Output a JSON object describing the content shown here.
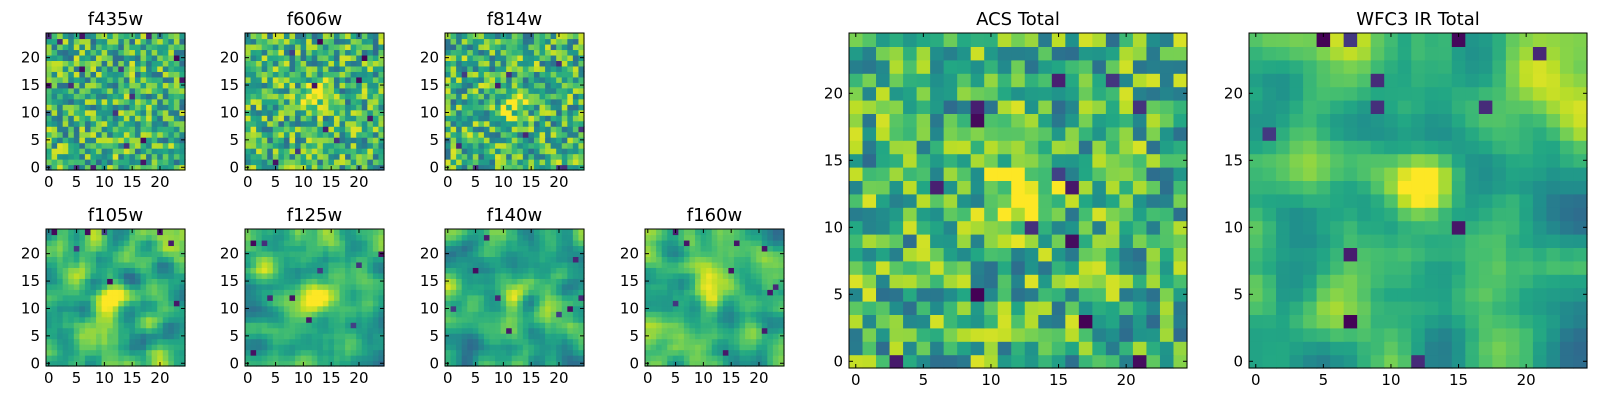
{
  "chart_data": [
    {
      "type": "heatmap",
      "title": "f435w",
      "size": 25,
      "xticks": [
        "0",
        "5",
        "10",
        "15",
        "20"
      ],
      "yticks": [
        "0",
        "5",
        "10",
        "15",
        "20"
      ],
      "style": "noise",
      "seed": 11,
      "hot_spot": null,
      "dark_pixels": 18,
      "colormap": "viridis"
    },
    {
      "type": "heatmap",
      "title": "f606w",
      "size": 25,
      "xticks": [
        "0",
        "5",
        "10",
        "15",
        "20"
      ],
      "yticks": [
        "0",
        "5",
        "10",
        "15",
        "20"
      ],
      "style": "noise",
      "seed": 23,
      "hot_spot": [
        12,
        13
      ],
      "dark_pixels": 10,
      "colormap": "viridis"
    },
    {
      "type": "heatmap",
      "title": "f814w",
      "size": 25,
      "xticks": [
        "0",
        "5",
        "10",
        "15",
        "20"
      ],
      "yticks": [
        "0",
        "5",
        "10",
        "15",
        "20"
      ],
      "style": "noise",
      "seed": 37,
      "hot_spot": [
        12,
        12
      ],
      "dark_pixels": 10,
      "colormap": "viridis"
    },
    {
      "type": "heatmap",
      "title": "f105w",
      "size": 25,
      "xticks": [
        "0",
        "5",
        "10",
        "15",
        "20"
      ],
      "yticks": [
        "0",
        "5",
        "10",
        "15",
        "20"
      ],
      "style": "smooth",
      "seed": 41,
      "hot_spot": [
        12,
        12
      ],
      "dark_pixels": 8,
      "colormap": "viridis"
    },
    {
      "type": "heatmap",
      "title": "f125w",
      "size": 25,
      "xticks": [
        "0",
        "5",
        "10",
        "15",
        "20"
      ],
      "yticks": [
        "0",
        "5",
        "10",
        "15",
        "20"
      ],
      "style": "smooth",
      "seed": 53,
      "hot_spot": [
        12,
        12
      ],
      "dark_pixels": 10,
      "colormap": "viridis"
    },
    {
      "type": "heatmap",
      "title": "f140w",
      "size": 25,
      "xticks": [
        "0",
        "5",
        "10",
        "15",
        "20"
      ],
      "yticks": [
        "0",
        "5",
        "10",
        "15",
        "20"
      ],
      "style": "smooth",
      "seed": 67,
      "hot_spot": [
        12,
        12
      ],
      "dark_pixels": 10,
      "colormap": "viridis"
    },
    {
      "type": "heatmap",
      "title": "f160w",
      "size": 25,
      "xticks": [
        "0",
        "5",
        "10",
        "15",
        "20"
      ],
      "yticks": [
        "0",
        "5",
        "10",
        "15",
        "20"
      ],
      "style": "smooth",
      "seed": 79,
      "hot_spot": [
        11,
        12
      ],
      "dark_pixels": 10,
      "colormap": "viridis"
    },
    {
      "type": "heatmap",
      "title": "ACS Total",
      "size": 25,
      "xticks": [
        "0",
        "5",
        "10",
        "15",
        "20"
      ],
      "yticks": [
        "0",
        "5",
        "10",
        "15",
        "20"
      ],
      "style": "noise",
      "seed": 97,
      "hot_spot": [
        12,
        12
      ],
      "dark_pixels": 14,
      "colormap": "viridis"
    },
    {
      "type": "heatmap",
      "title": "WFC3 IR Total",
      "size": 25,
      "xticks": [
        "0",
        "5",
        "10",
        "15",
        "20"
      ],
      "yticks": [
        "0",
        "5",
        "10",
        "15",
        "20"
      ],
      "style": "smooth",
      "seed": 113,
      "hot_spot": [
        12,
        13
      ],
      "dark_pixels": 12,
      "colormap": "viridis"
    }
  ]
}
